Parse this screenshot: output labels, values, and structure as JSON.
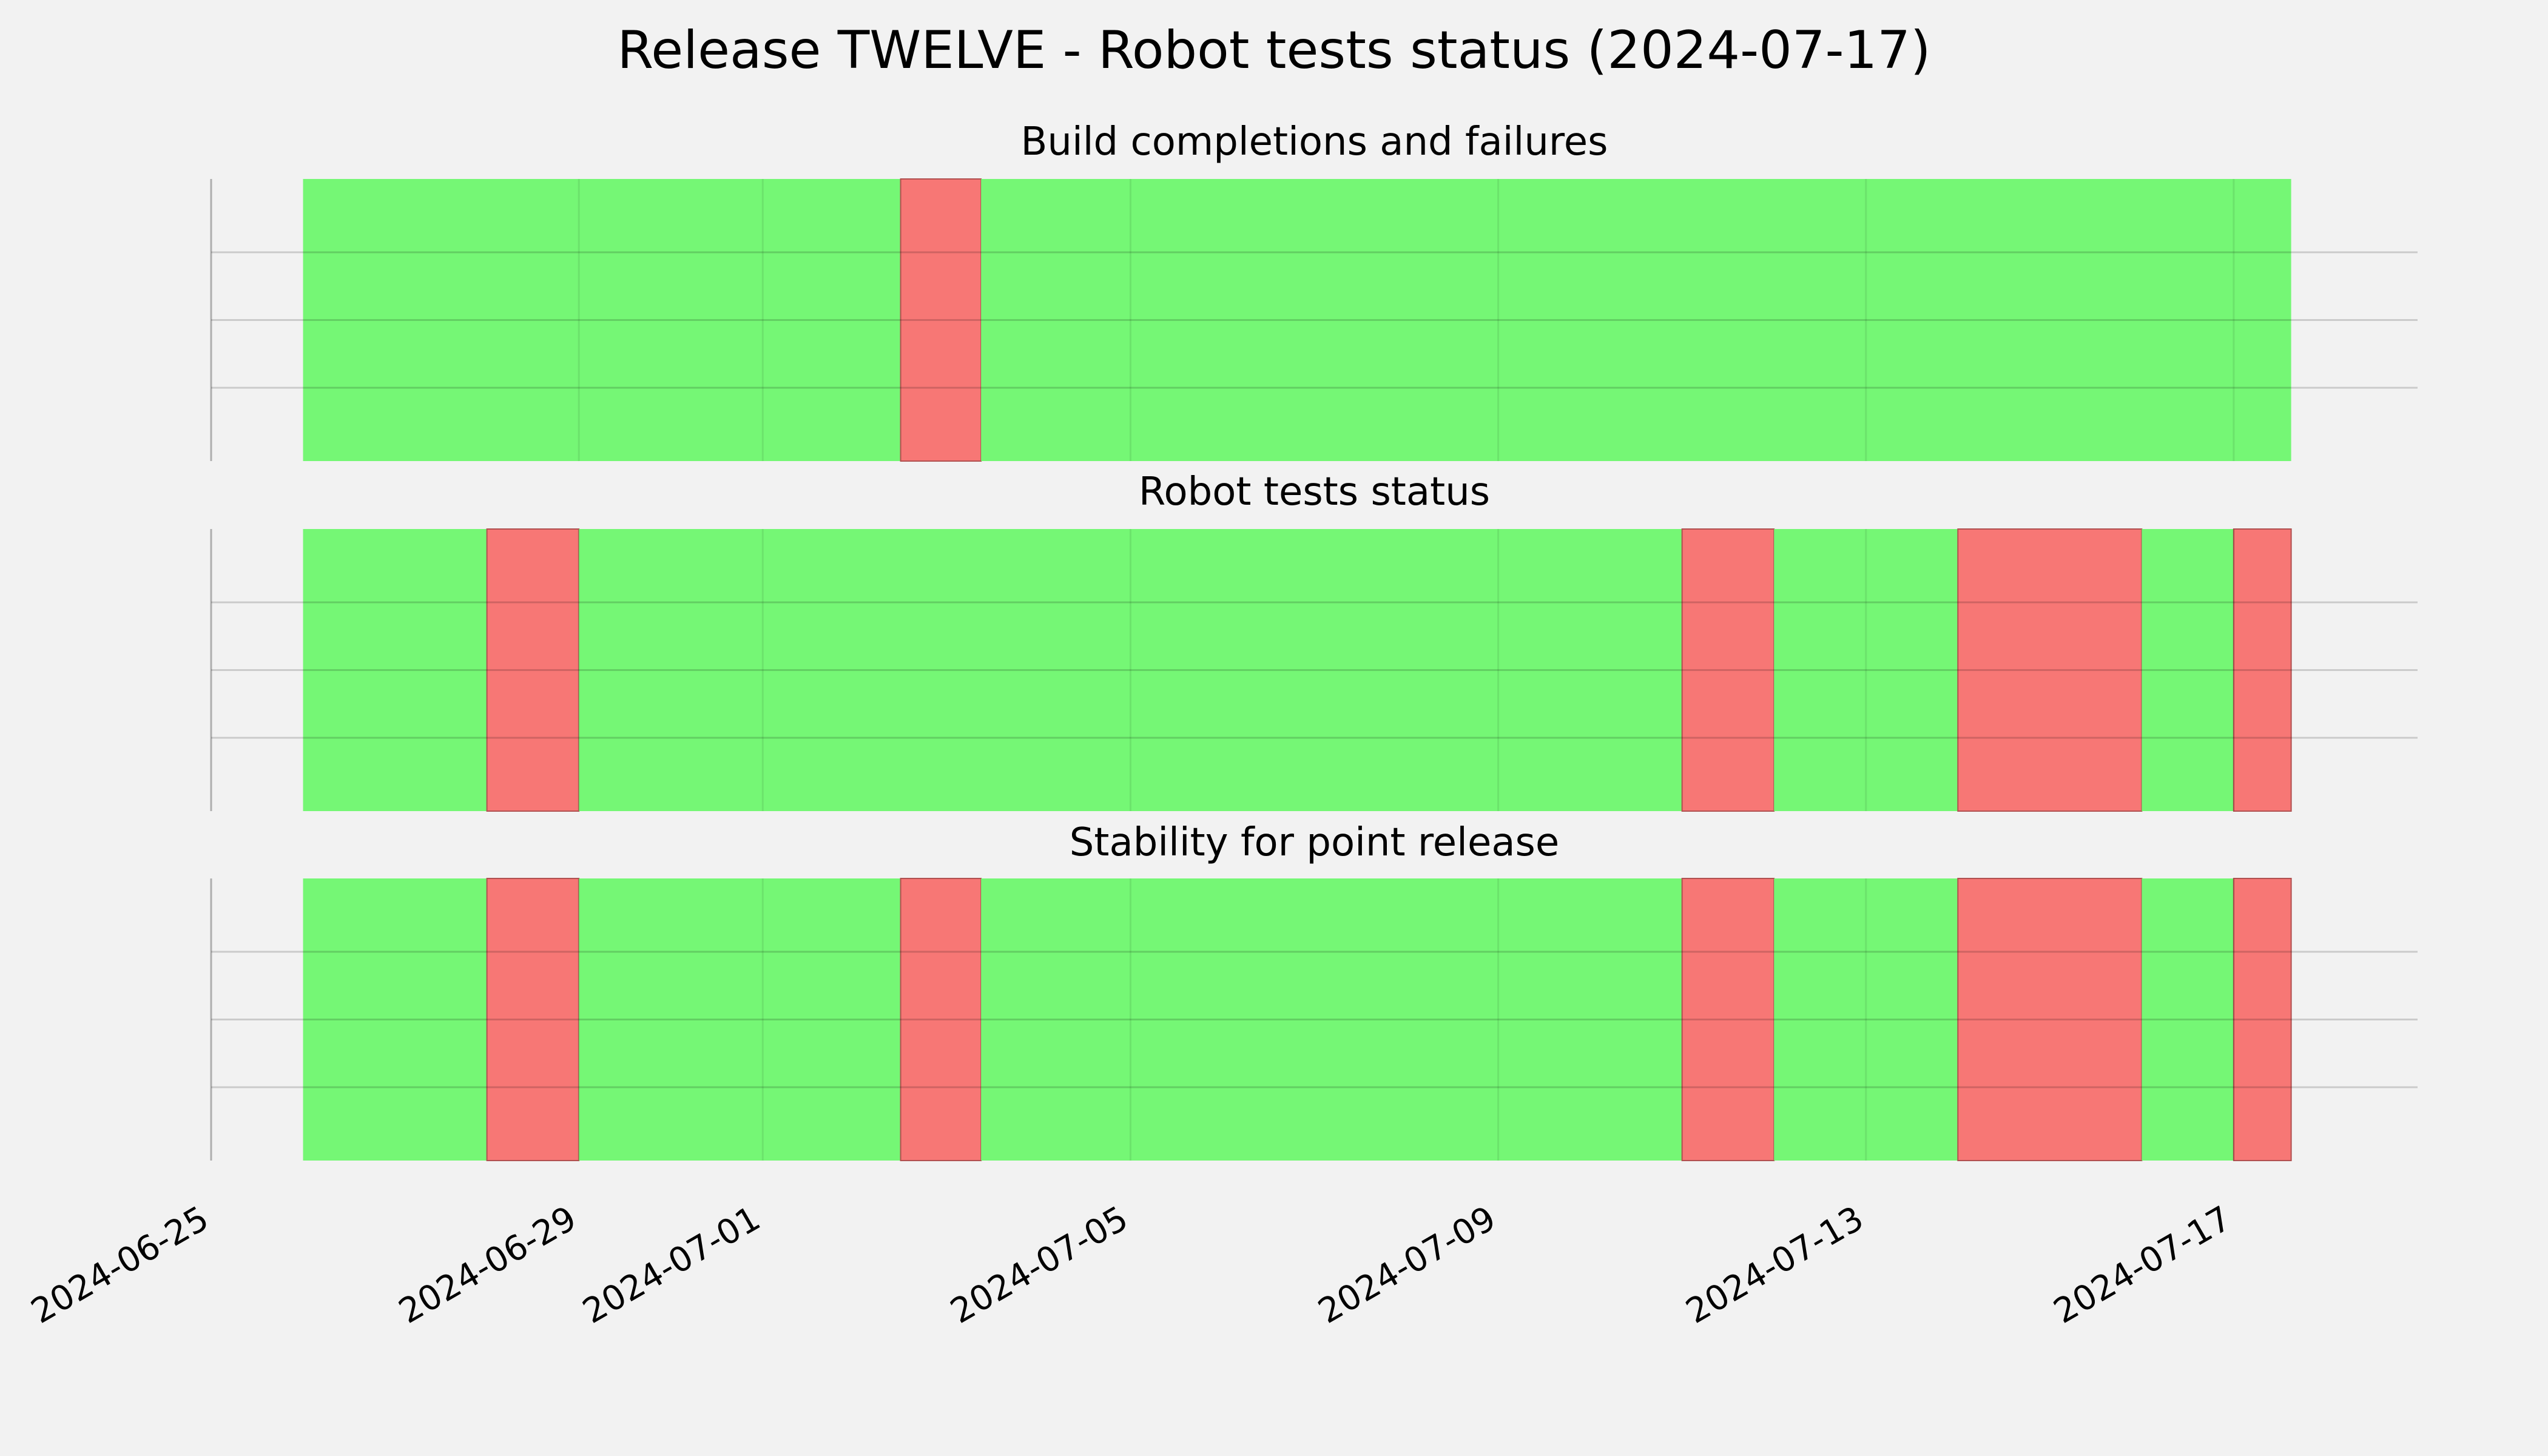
{
  "chart_data": {
    "type": "timeline",
    "title": "Release TWELVE - Robot tests status (2024-07-17)",
    "xlabel": "",
    "ylabel": "",
    "xlim": [
      "2024-06-25",
      "2024-07-19"
    ],
    "x_ticks": [
      "2024-06-25",
      "2024-06-29",
      "2024-07-01",
      "2024-07-05",
      "2024-07-09",
      "2024-07-13",
      "2024-07-17"
    ],
    "grid": true,
    "status_colors": {
      "pass": "#75f775",
      "fail": "#f77775"
    },
    "panels": [
      {
        "title": "Build completions and failures",
        "segments": [
          {
            "start": "2024-06-26",
            "end": "2024-07-02 12:00",
            "status": "pass"
          },
          {
            "start": "2024-07-02 12:00",
            "end": "2024-07-03 09:00",
            "status": "fail"
          },
          {
            "start": "2024-07-03 09:00",
            "end": "2024-07-17 15:00",
            "status": "pass"
          }
        ]
      },
      {
        "title": "Robot tests status",
        "segments": [
          {
            "start": "2024-06-26",
            "end": "2024-06-28",
            "status": "pass"
          },
          {
            "start": "2024-06-28",
            "end": "2024-06-29",
            "status": "fail"
          },
          {
            "start": "2024-06-29",
            "end": "2024-07-11",
            "status": "pass"
          },
          {
            "start": "2024-07-11",
            "end": "2024-07-12",
            "status": "fail"
          },
          {
            "start": "2024-07-12",
            "end": "2024-07-14",
            "status": "pass"
          },
          {
            "start": "2024-07-14",
            "end": "2024-07-16",
            "status": "fail"
          },
          {
            "start": "2024-07-16",
            "end": "2024-07-17",
            "status": "pass"
          },
          {
            "start": "2024-07-17",
            "end": "2024-07-17 15:00",
            "status": "fail"
          }
        ]
      },
      {
        "title": "Stability for point release",
        "segments": [
          {
            "start": "2024-06-26",
            "end": "2024-06-28",
            "status": "pass"
          },
          {
            "start": "2024-06-28",
            "end": "2024-06-29",
            "status": "fail"
          },
          {
            "start": "2024-06-29",
            "end": "2024-07-02 12:00",
            "status": "pass"
          },
          {
            "start": "2024-07-02 12:00",
            "end": "2024-07-03 09:00",
            "status": "fail"
          },
          {
            "start": "2024-07-03 09:00",
            "end": "2024-07-11",
            "status": "pass"
          },
          {
            "start": "2024-07-11",
            "end": "2024-07-12",
            "status": "fail"
          },
          {
            "start": "2024-07-12",
            "end": "2024-07-14",
            "status": "pass"
          },
          {
            "start": "2024-07-14",
            "end": "2024-07-16",
            "status": "fail"
          },
          {
            "start": "2024-07-16",
            "end": "2024-07-17",
            "status": "pass"
          },
          {
            "start": "2024-07-17",
            "end": "2024-07-17 15:00",
            "status": "fail"
          }
        ]
      }
    ]
  }
}
